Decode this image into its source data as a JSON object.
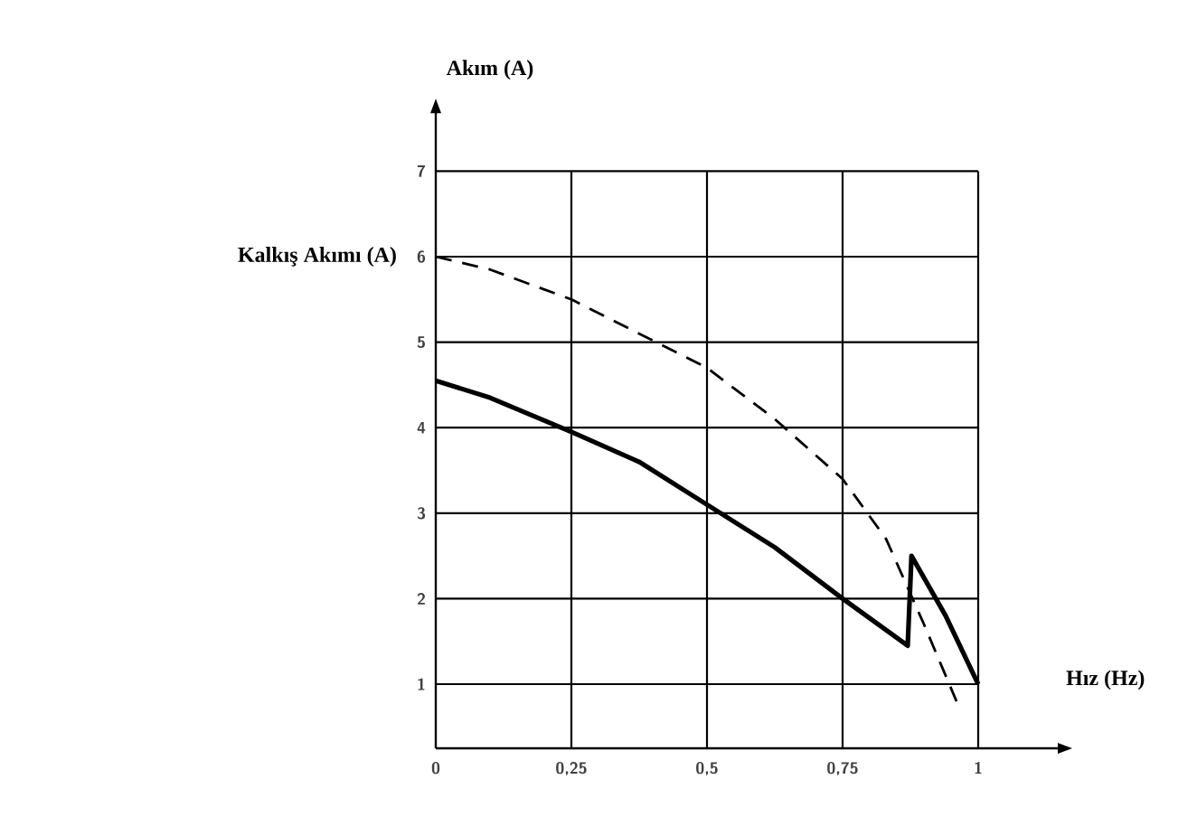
{
  "chart_data": {
    "type": "line",
    "xlabel": "Hız (Hz)",
    "ylabel": "Akım (A)",
    "annotations": [
      "Kalkış Akımı (A)"
    ],
    "xlim": [
      0,
      1.15
    ],
    "ylim": [
      0.25,
      7.7
    ],
    "xticks": [
      0,
      {
        "value": 0.25,
        "label": "0,25"
      },
      {
        "value": 0.5,
        "label": "0,5"
      },
      {
        "value": 0.75,
        "label": "0,75"
      },
      1
    ],
    "yticks": [
      1,
      2,
      3,
      4,
      5,
      6,
      7
    ],
    "grid": true,
    "marker": "none",
    "series": [
      {
        "color": "#000000",
        "line_style": "solid",
        "x": [
          0,
          0.1,
          0.25,
          0.375,
          0.5,
          0.625,
          0.75,
          0.87,
          0.877,
          0.94,
          1
        ],
        "values": [
          4.55,
          4.35,
          3.95,
          3.6,
          3.1,
          2.6,
          2.0,
          1.45,
          2.5,
          1.8,
          1.0
        ]
      },
      {
        "color": "#000000",
        "line_style": "dashed",
        "x": [
          0,
          0.1,
          0.25,
          0.375,
          0.5,
          0.625,
          0.75,
          0.83,
          0.9,
          0.96
        ],
        "values": [
          6.0,
          5.85,
          5.5,
          5.1,
          4.7,
          4.1,
          3.4,
          2.7,
          1.7,
          0.8
        ]
      }
    ]
  }
}
